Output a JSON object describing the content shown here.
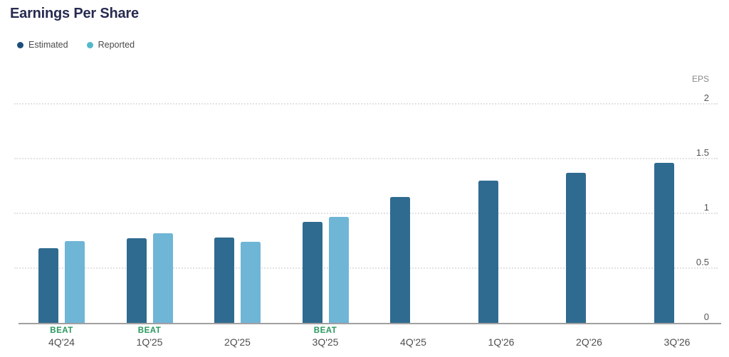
{
  "title": "Earnings Per Share",
  "legend": {
    "estimated": {
      "label": "Estimated",
      "dot_color": "#1d4e7b"
    },
    "reported": {
      "label": "Reported",
      "dot_color": "#52b9cb"
    }
  },
  "colors": {
    "title": "#272b50",
    "bar_estimated": "#2f6b90",
    "bar_reported": "#6fb5d6",
    "beat": "#27985c",
    "tick_text": "#555555",
    "gridline": "#e2e2e2",
    "baseline": "#a0a0a0",
    "category_text": "#4f4f4f",
    "eps_text": "#8a8a8a",
    "legend_text": "#4a4a4a"
  },
  "chart_data": {
    "type": "bar",
    "title": "Earnings Per Share",
    "ylabel": "EPS",
    "ylim": [
      0,
      2
    ],
    "grid": "dotted-horizontal",
    "legend_position": "top-left",
    "categories": [
      "4Q'24",
      "1Q'25",
      "2Q'25",
      "3Q'25",
      "4Q'25",
      "1Q'26",
      "2Q'26",
      "3Q'26"
    ],
    "series": [
      {
        "name": "Estimated",
        "color": "#2f6b90",
        "values": [
          0.68,
          0.77,
          0.78,
          0.92,
          1.15,
          1.3,
          1.37,
          1.46
        ]
      },
      {
        "name": "Reported",
        "color": "#6fb5d6",
        "values": [
          0.75,
          0.82,
          0.74,
          0.97,
          null,
          null,
          null,
          null
        ]
      }
    ],
    "beat_label": "BEAT",
    "beat_flags": [
      true,
      true,
      false,
      true,
      false,
      false,
      false,
      false
    ],
    "yticks": [
      {
        "value": 0,
        "label": "0"
      },
      {
        "value": 0.5,
        "label": "0.5"
      },
      {
        "value": 1,
        "label": "1"
      },
      {
        "value": 1.5,
        "label": "1.5"
      },
      {
        "value": 2,
        "label": "2"
      }
    ]
  }
}
